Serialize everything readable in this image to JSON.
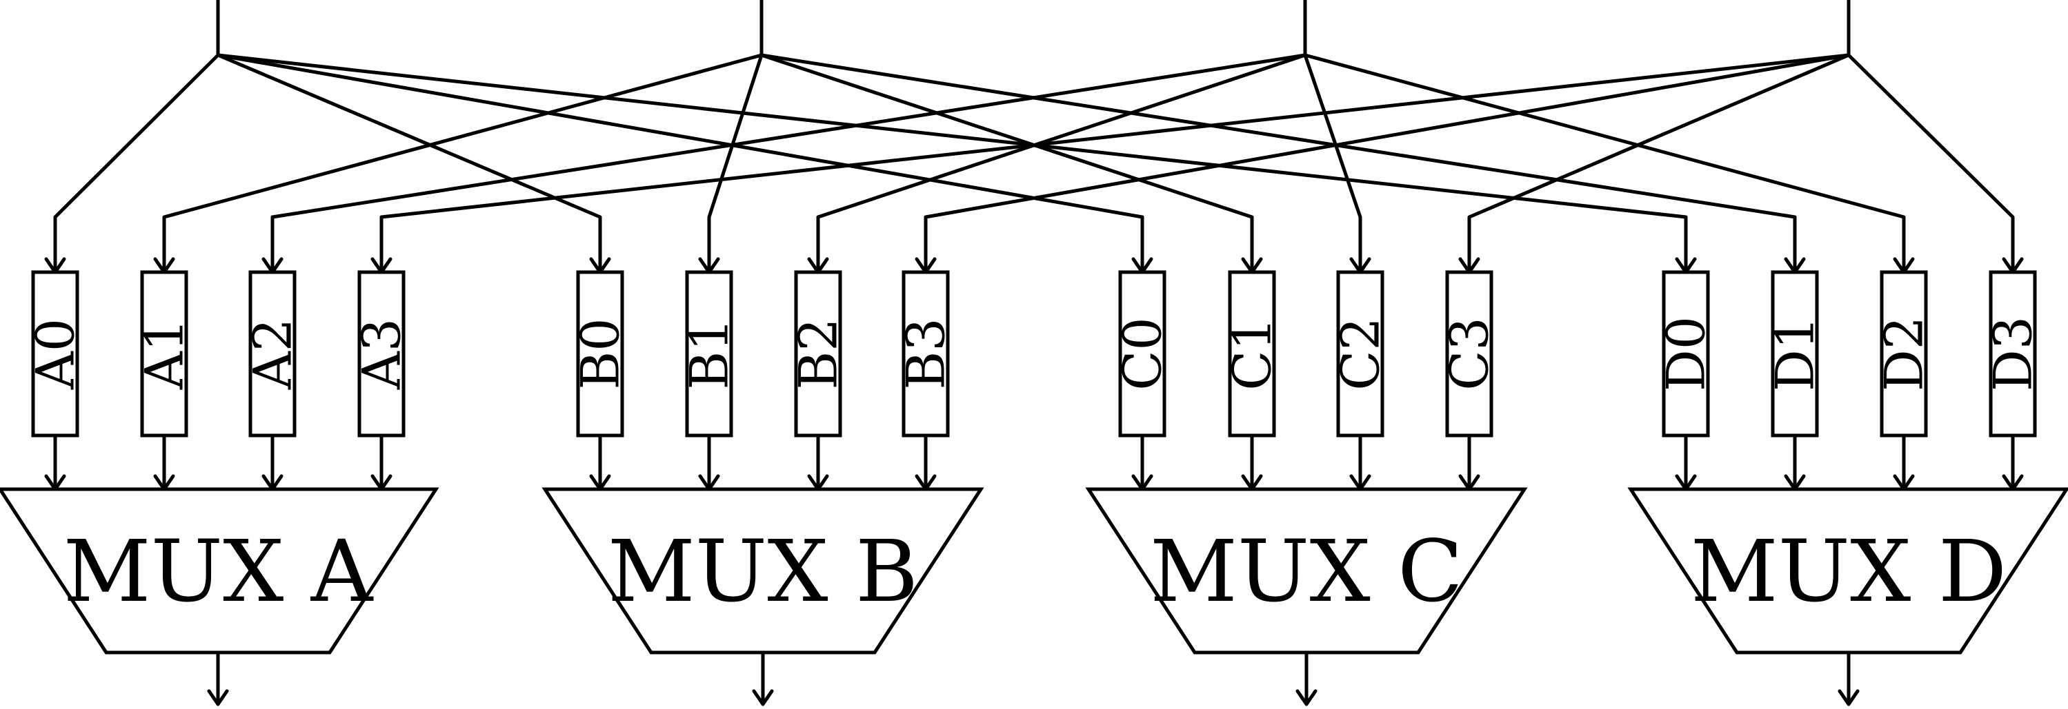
{
  "registers": [
    [
      "A0",
      "A1",
      "A2",
      "A3"
    ],
    [
      "B0",
      "B1",
      "B2",
      "B3"
    ],
    [
      "C0",
      "C1",
      "C2",
      "C3"
    ],
    [
      "D0",
      "D1",
      "D2",
      "D3"
    ]
  ],
  "muxes": [
    "MUX A",
    "MUX B",
    "MUX C",
    "MUX D"
  ]
}
